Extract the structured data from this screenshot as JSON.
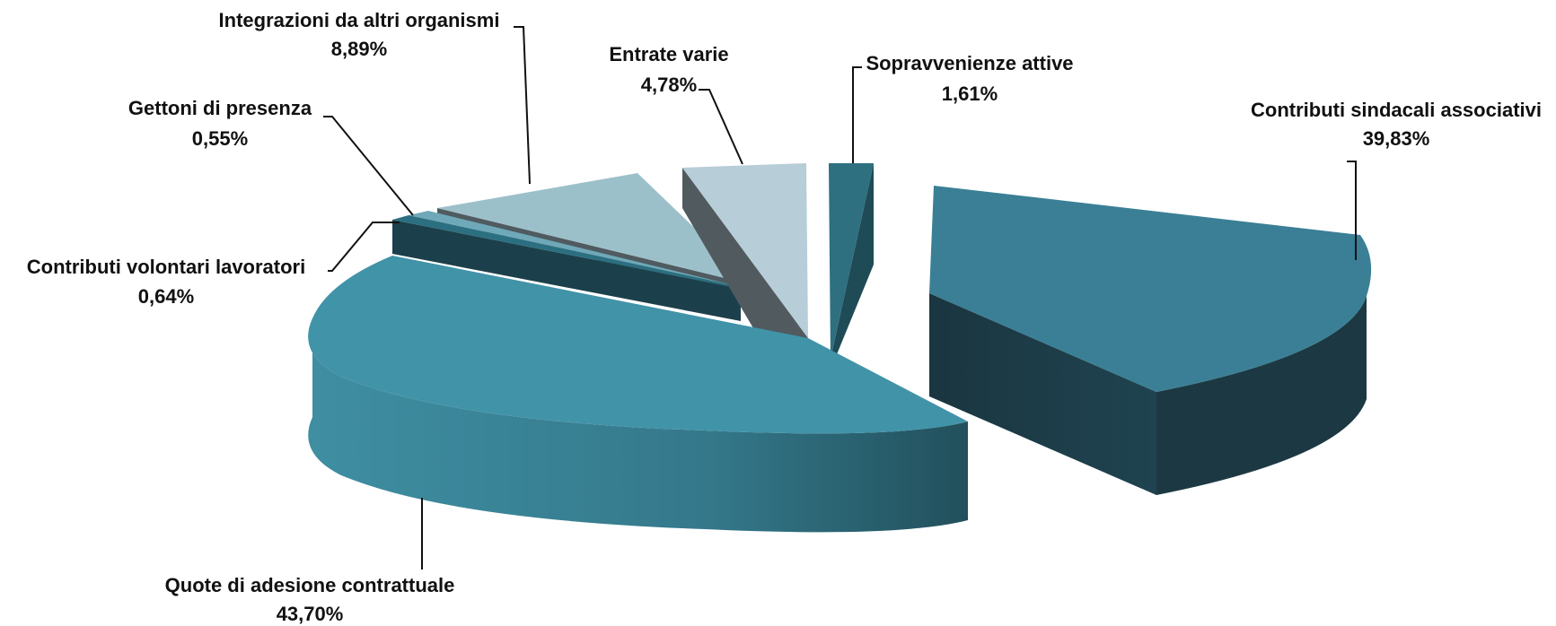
{
  "chart_data": {
    "type": "pie",
    "title": "",
    "slices": [
      {
        "label": "Contributi sindacali associativi",
        "value": 39.83,
        "value_label": "39,83%",
        "color": "#3a7f95",
        "side_color": "#1c3943"
      },
      {
        "label": "Quote di adesione contrattuale",
        "value": 43.7,
        "value_label": "43,70%",
        "color": "#4193a8",
        "side_color": "#2a6576"
      },
      {
        "label": "Contributi  volontari lavoratori",
        "value": 0.64,
        "value_label": "0,64%",
        "color": "#2b6f80",
        "side_color": "#1c404b"
      },
      {
        "label": "Gettoni di presenza",
        "value": 0.55,
        "value_label": "0,55%",
        "color": "#6fa8b8",
        "side_color": "#3f6570"
      },
      {
        "label": "Integrazioni da altri organismi",
        "value": 8.89,
        "value_label": "8,89%",
        "color": "#9cc0ca",
        "side_color": "#4f5b60"
      },
      {
        "label": "Entrate varie",
        "value": 4.78,
        "value_label": "4,78%",
        "color": "#b7cdd8",
        "side_color": "#505a5f"
      },
      {
        "label": "Sopravvenienze attive",
        "value": 1.61,
        "value_label": "1,61%",
        "color": "#2e6f80",
        "side_color": "#1f4b56"
      }
    ]
  }
}
